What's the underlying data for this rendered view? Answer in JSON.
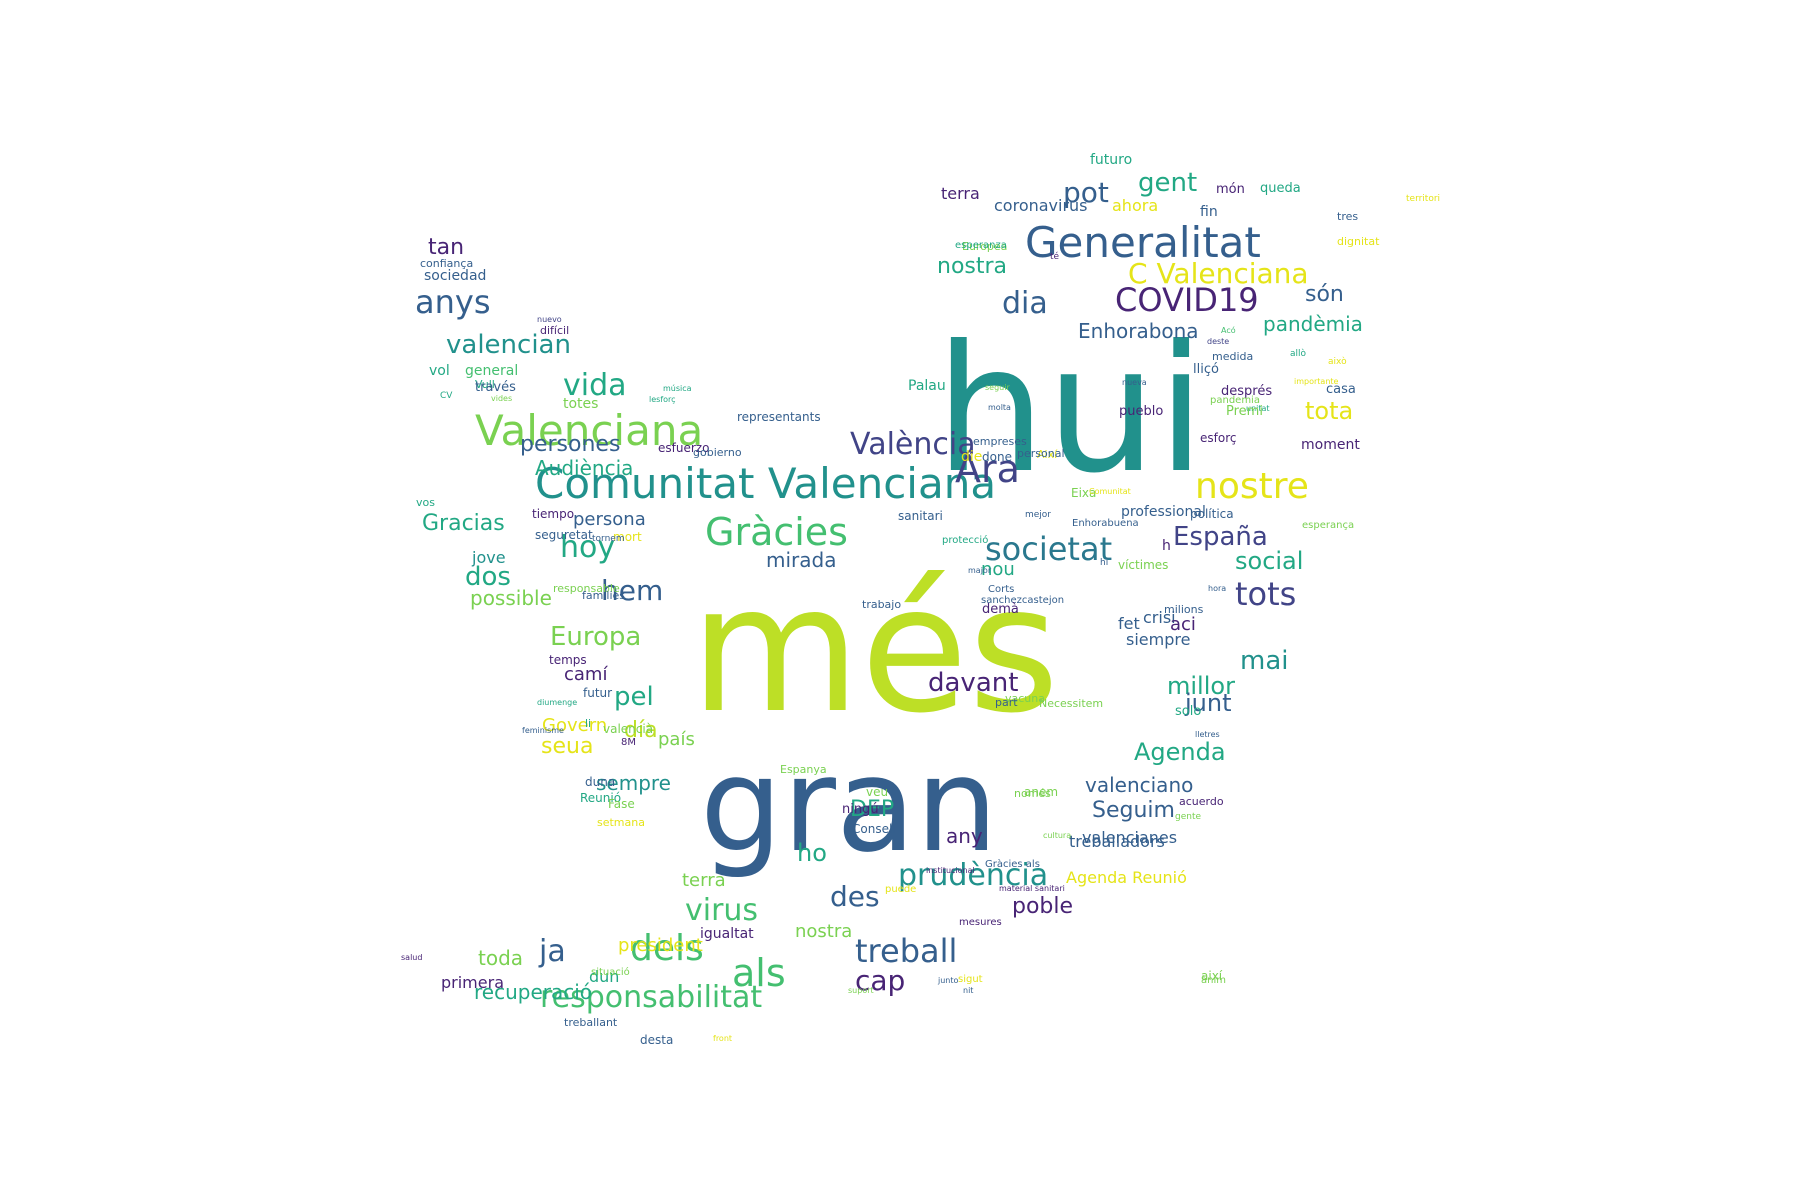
{
  "colors": {
    "background": "#ffffff",
    "palette": {
      "yg": "#bddf26",
      "lg": "#7ad151",
      "gr": "#44bf70",
      "te": "#22a884",
      "tl": "#21918c",
      "cy": "#2a788e",
      "bl": "#355f8d",
      "in": "#414487",
      "pu": "#482475",
      "ye": "#e5e419",
      "dk": "#440154"
    }
  },
  "words": [
    {
      "text": "més",
      "size": 175,
      "color": "yg"
    },
    {
      "text": "hui",
      "size": 175,
      "color": "tl"
    },
    {
      "text": "gran",
      "size": 130,
      "color": "bl"
    },
    {
      "text": "Comunitat Valenciana",
      "size": 42,
      "color": "tl"
    },
    {
      "text": "Generalitat",
      "size": 42,
      "color": "bl"
    },
    {
      "text": "Valenciana",
      "size": 42,
      "color": "lg"
    },
    {
      "text": "Gràcies",
      "size": 38,
      "color": "gr"
    },
    {
      "text": "Ara",
      "size": 38,
      "color": "in"
    },
    {
      "text": "als",
      "size": 38,
      "color": "gr"
    },
    {
      "text": "dels",
      "size": 36,
      "color": "gr"
    },
    {
      "text": "nostre",
      "size": 36,
      "color": "ye"
    },
    {
      "text": "societat",
      "size": 32,
      "color": "cy"
    },
    {
      "text": "anys",
      "size": 32,
      "color": "bl"
    },
    {
      "text": "treball",
      "size": 32,
      "color": "bl"
    },
    {
      "text": "tots",
      "size": 32,
      "color": "in"
    },
    {
      "text": "COVID19",
      "size": 32,
      "color": "pu"
    },
    {
      "text": "València",
      "size": 30,
      "color": "in"
    },
    {
      "text": "virus",
      "size": 30,
      "color": "gr"
    },
    {
      "text": "prudència",
      "size": 30,
      "color": "tl"
    },
    {
      "text": "dia",
      "size": 30,
      "color": "bl"
    },
    {
      "text": "responsabilitat",
      "size": 30,
      "color": "gr"
    },
    {
      "text": "hoy",
      "size": 30,
      "color": "te"
    },
    {
      "text": "vida",
      "size": 30,
      "color": "te"
    },
    {
      "text": "C Valenciana",
      "size": 28,
      "color": "ye"
    },
    {
      "text": "pot",
      "size": 28,
      "color": "bl"
    },
    {
      "text": "gent",
      "size": 26,
      "color": "te"
    },
    {
      "text": "ja",
      "size": 30,
      "color": "bl"
    },
    {
      "text": "hem",
      "size": 28,
      "color": "bl"
    },
    {
      "text": "des",
      "size": 28,
      "color": "bl"
    },
    {
      "text": "cap",
      "size": 28,
      "color": "pu"
    },
    {
      "text": "davant",
      "size": 26,
      "color": "pu"
    },
    {
      "text": "mai",
      "size": 26,
      "color": "tl"
    },
    {
      "text": "pel",
      "size": 26,
      "color": "te"
    },
    {
      "text": "valencian",
      "size": 26,
      "color": "tl"
    },
    {
      "text": "España",
      "size": 26,
      "color": "in"
    },
    {
      "text": "Europa",
      "size": 26,
      "color": "lg"
    },
    {
      "text": "dos",
      "size": 26,
      "color": "te"
    },
    {
      "text": "tota",
      "size": 24,
      "color": "ye"
    },
    {
      "text": "social",
      "size": 24,
      "color": "te"
    },
    {
      "text": "millor",
      "size": 24,
      "color": "te"
    },
    {
      "text": "Agenda",
      "size": 24,
      "color": "te"
    },
    {
      "text": "junt",
      "size": 24,
      "color": "bl"
    },
    {
      "text": "ho",
      "size": 24,
      "color": "te"
    },
    {
      "text": "DEP",
      "size": 22,
      "color": "te"
    },
    {
      "text": "Seguim",
      "size": 22,
      "color": "bl"
    },
    {
      "text": "persones",
      "size": 22,
      "color": "bl"
    },
    {
      "text": "nostra",
      "size": 22,
      "color": "te"
    },
    {
      "text": "Gracias",
      "size": 22,
      "color": "te"
    },
    {
      "text": "poble",
      "size": 22,
      "color": "pu"
    },
    {
      "text": "tan",
      "size": 22,
      "color": "pu"
    },
    {
      "text": "possible",
      "size": 20,
      "color": "lg"
    },
    {
      "text": "día",
      "size": 22,
      "color": "yg"
    },
    {
      "text": "seua",
      "size": 22,
      "color": "ye"
    },
    {
      "text": "sempre",
      "size": 20,
      "color": "tl"
    },
    {
      "text": "són",
      "size": 22,
      "color": "bl"
    },
    {
      "text": "pandèmia",
      "size": 20,
      "color": "te"
    },
    {
      "text": "Enhorabona",
      "size": 20,
      "color": "bl"
    },
    {
      "text": "valenciano",
      "size": 20,
      "color": "bl"
    },
    {
      "text": "Audiència",
      "size": 20,
      "color": "te"
    },
    {
      "text": "mirada",
      "size": 20,
      "color": "bl"
    },
    {
      "text": "persona",
      "size": 18,
      "color": "bl"
    },
    {
      "text": "president",
      "size": 18,
      "color": "ye"
    },
    {
      "text": "recuperació",
      "size": 20,
      "color": "te"
    },
    {
      "text": "toda",
      "size": 20,
      "color": "lg"
    },
    {
      "text": "nou",
      "size": 18,
      "color": "te"
    },
    {
      "text": "Govern",
      "size": 18,
      "color": "ye"
    },
    {
      "text": "any",
      "size": 20,
      "color": "pu"
    },
    {
      "text": "valencianes",
      "size": 16,
      "color": "bl"
    },
    {
      "text": "treballadors",
      "size": 16,
      "color": "bl"
    },
    {
      "text": "igualtat",
      "size": 14,
      "color": "pu"
    },
    {
      "text": "nostra",
      "size": 18,
      "color": "lg"
    },
    {
      "text": "terra",
      "size": 18,
      "color": "lg"
    },
    {
      "text": "Agenda Reunió",
      "size": 16,
      "color": "ye"
    },
    {
      "text": "camí",
      "size": 18,
      "color": "pu"
    },
    {
      "text": "crisi",
      "size": 16,
      "color": "bl"
    },
    {
      "text": "aci",
      "size": 18,
      "color": "pu"
    },
    {
      "text": "país",
      "size": 18,
      "color": "lg"
    },
    {
      "text": "dun",
      "size": 16,
      "color": "te"
    },
    {
      "text": "primera",
      "size": 16,
      "color": "pu"
    },
    {
      "text": "fet",
      "size": 16,
      "color": "bl"
    },
    {
      "text": "siempre",
      "size": 16,
      "color": "bl"
    },
    {
      "text": "professional",
      "size": 14,
      "color": "bl"
    },
    {
      "text": "jove",
      "size": 16,
      "color": "tl"
    },
    {
      "text": "sociedad",
      "size": 14,
      "color": "bl"
    },
    {
      "text": "general",
      "size": 14,
      "color": "gr"
    },
    {
      "text": "futuro",
      "size": 14,
      "color": "te"
    },
    {
      "text": "coronavirus",
      "size": 16,
      "color": "bl"
    },
    {
      "text": "ahora",
      "size": 16,
      "color": "ye"
    },
    {
      "text": "terra",
      "size": 16,
      "color": "pu"
    },
    {
      "text": "món",
      "size": 13,
      "color": "pu"
    },
    {
      "text": "queda",
      "size": 13,
      "color": "te"
    },
    {
      "text": "fin",
      "size": 14,
      "color": "bl"
    },
    {
      "text": "tres",
      "size": 11,
      "color": "bl"
    },
    {
      "text": "territori",
      "size": 9,
      "color": "ye"
    },
    {
      "text": "dignitat",
      "size": 11,
      "color": "ye"
    },
    {
      "text": "té",
      "size": 9,
      "color": "pu"
    },
    {
      "text": "Europea",
      "size": 11,
      "color": "lg"
    },
    {
      "text": "esperanza",
      "size": 10,
      "color": "te"
    },
    {
      "text": "confiança",
      "size": 11,
      "color": "bl"
    },
    {
      "text": "nuevo",
      "size": 8,
      "color": "in"
    },
    {
      "text": "difícil",
      "size": 11,
      "color": "pu"
    },
    {
      "text": "vol",
      "size": 14,
      "color": "te"
    },
    {
      "text": "Vull",
      "size": 11,
      "color": "te"
    },
    {
      "text": "CV",
      "size": 9,
      "color": "te"
    },
    {
      "text": "vides",
      "size": 8,
      "color": "lg"
    },
    {
      "text": "través",
      "size": 13,
      "color": "bl"
    },
    {
      "text": "música",
      "size": 8,
      "color": "te"
    },
    {
      "text": "lesforç",
      "size": 8,
      "color": "te"
    },
    {
      "text": "totes",
      "size": 14,
      "color": "lg"
    },
    {
      "text": "representants",
      "size": 12,
      "color": "bl"
    },
    {
      "text": "esfuerzo",
      "size": 12,
      "color": "pu"
    },
    {
      "text": "gobierno",
      "size": 11,
      "color": "bl"
    },
    {
      "text": "done",
      "size": 12,
      "color": "bl"
    },
    {
      "text": "die",
      "size": 14,
      "color": "ye"
    },
    {
      "text": "Així",
      "size": 11,
      "color": "ye"
    },
    {
      "text": "personal",
      "size": 11,
      "color": "bl"
    },
    {
      "text": "Acó",
      "size": 8,
      "color": "gr"
    },
    {
      "text": "deste",
      "size": 8,
      "color": "in"
    },
    {
      "text": "allò",
      "size": 9,
      "color": "te"
    },
    {
      "text": "això",
      "size": 9,
      "color": "ye"
    },
    {
      "text": "Palau",
      "size": 14,
      "color": "te"
    },
    {
      "text": "seguir",
      "size": 8,
      "color": "lg"
    },
    {
      "text": "molta",
      "size": 8,
      "color": "bl"
    },
    {
      "text": "nueva",
      "size": 8,
      "color": "bl"
    },
    {
      "text": "medida",
      "size": 11,
      "color": "bl"
    },
    {
      "text": "lliçó",
      "size": 13,
      "color": "bl"
    },
    {
      "text": "casa",
      "size": 13,
      "color": "bl"
    },
    {
      "text": "després",
      "size": 13,
      "color": "pu"
    },
    {
      "text": "pandemia",
      "size": 10,
      "color": "lg"
    },
    {
      "text": "unitat",
      "size": 8,
      "color": "te"
    },
    {
      "text": "importante",
      "size": 8,
      "color": "ye"
    },
    {
      "text": "pueblo",
      "size": 13,
      "color": "pu"
    },
    {
      "text": "Premi",
      "size": 13,
      "color": "lg"
    },
    {
      "text": "esforç",
      "size": 12,
      "color": "pu"
    },
    {
      "text": "moment",
      "size": 14,
      "color": "pu"
    },
    {
      "text": "empreses",
      "size": 11,
      "color": "bl"
    },
    {
      "text": "Eixa",
      "size": 12,
      "color": "lg"
    },
    {
      "text": "Comunitat",
      "size": 8,
      "color": "ye"
    },
    {
      "text": "vos",
      "size": 11,
      "color": "te"
    },
    {
      "text": "tiempo",
      "size": 12,
      "color": "pu"
    },
    {
      "text": "mort",
      "size": 12,
      "color": "ye"
    },
    {
      "text": "sanitari",
      "size": 12,
      "color": "bl"
    },
    {
      "text": "mejor",
      "size": 9,
      "color": "bl"
    },
    {
      "text": "política",
      "size": 12,
      "color": "bl"
    },
    {
      "text": "esperança",
      "size": 10,
      "color": "lg"
    },
    {
      "text": "protecció",
      "size": 10,
      "color": "te"
    },
    {
      "text": "Enhorabuena",
      "size": 10,
      "color": "bl"
    },
    {
      "text": "h",
      "size": 14,
      "color": "pu"
    },
    {
      "text": "major",
      "size": 8,
      "color": "bl"
    },
    {
      "text": "hi",
      "size": 9,
      "color": "bl"
    },
    {
      "text": "responsable",
      "size": 11,
      "color": "lg"
    },
    {
      "text": "seguretat",
      "size": 12,
      "color": "bl"
    },
    {
      "text": "tornem",
      "size": 9,
      "color": "bl"
    },
    {
      "text": "trabajo",
      "size": 11,
      "color": "bl"
    },
    {
      "text": "Corts",
      "size": 10,
      "color": "bl"
    },
    {
      "text": "sanchezcastejon",
      "size": 10,
      "color": "bl"
    },
    {
      "text": "víctimes",
      "size": 12,
      "color": "lg"
    },
    {
      "text": "hora",
      "size": 8,
      "color": "bl"
    },
    {
      "text": "famílies",
      "size": 11,
      "color": "bl"
    },
    {
      "text": "demà",
      "size": 13,
      "color": "pu"
    },
    {
      "text": "milions",
      "size": 11,
      "color": "bl"
    },
    {
      "text": "temps",
      "size": 12,
      "color": "pu"
    },
    {
      "text": "futur",
      "size": 12,
      "color": "bl"
    },
    {
      "text": "Necessitem",
      "size": 11,
      "color": "lg"
    },
    {
      "text": "vacuna",
      "size": 11,
      "color": "lg"
    },
    {
      "text": "solo",
      "size": 13,
      "color": "te"
    },
    {
      "text": "feminisme",
      "size": 8,
      "color": "bl"
    },
    {
      "text": "li",
      "size": 11,
      "color": "te"
    },
    {
      "text": "valencià",
      "size": 12,
      "color": "lg"
    },
    {
      "text": "8M",
      "size": 10,
      "color": "pu"
    },
    {
      "text": "veu",
      "size": 12,
      "color": "lg"
    },
    {
      "text": "part",
      "size": 11,
      "color": "bl"
    },
    {
      "text": "lletres",
      "size": 8,
      "color": "bl"
    },
    {
      "text": "diumenge",
      "size": 8,
      "color": "te"
    },
    {
      "text": "Espanya",
      "size": 11,
      "color": "lg"
    },
    {
      "text": "anem",
      "size": 12,
      "color": "lg"
    },
    {
      "text": "només",
      "size": 11,
      "color": "lg"
    },
    {
      "text": "Reunió",
      "size": 12,
      "color": "te"
    },
    {
      "text": "gente",
      "size": 9,
      "color": "lg"
    },
    {
      "text": "Fase",
      "size": 12,
      "color": "lg"
    },
    {
      "text": "acuerdo",
      "size": 11,
      "color": "pu"
    },
    {
      "text": "duna",
      "size": 12,
      "color": "bl"
    },
    {
      "text": "ningú",
      "size": 13,
      "color": "pu"
    },
    {
      "text": "Consell",
      "size": 12,
      "color": "bl"
    },
    {
      "text": "cultura",
      "size": 8,
      "color": "lg"
    },
    {
      "text": "setmana",
      "size": 11,
      "color": "ye"
    },
    {
      "text": "Gràcies als",
      "size": 10,
      "color": "bl"
    },
    {
      "text": "institucional",
      "size": 8,
      "color": "pu"
    },
    {
      "text": "material sanitari",
      "size": 8,
      "color": "pu"
    },
    {
      "text": "puede",
      "size": 10,
      "color": "ye"
    },
    {
      "text": "mesures",
      "size": 10,
      "color": "pu"
    },
    {
      "text": "salud",
      "size": 8,
      "color": "pu"
    },
    {
      "text": "situació",
      "size": 10,
      "color": "lg"
    },
    {
      "text": "junto",
      "size": 8,
      "color": "bl"
    },
    {
      "text": "ànim",
      "size": 10,
      "color": "lg"
    },
    {
      "text": "sigut",
      "size": 10,
      "color": "ye"
    },
    {
      "text": "així",
      "size": 12,
      "color": "lg"
    },
    {
      "text": "suport",
      "size": 8,
      "color": "lg"
    },
    {
      "text": "nit",
      "size": 8,
      "color": "bl"
    },
    {
      "text": "desta",
      "size": 12,
      "color": "bl"
    },
    {
      "text": "front",
      "size": 8,
      "color": "ye"
    },
    {
      "text": "treballant",
      "size": 11,
      "color": "bl"
    }
  ]
}
